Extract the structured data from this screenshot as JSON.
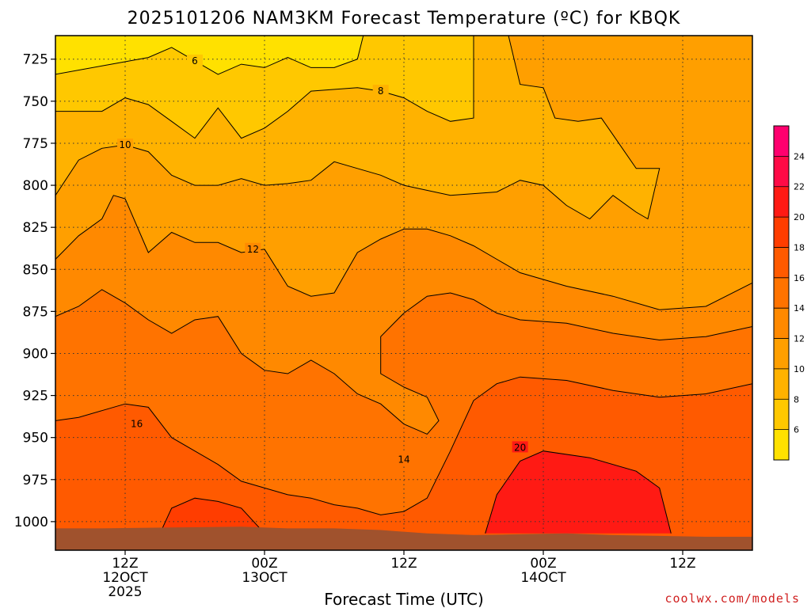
{
  "chart_data": {
    "type": "heatmap",
    "title": "2025101206 NAM3KM Forecast Temperature (ºC) for KBQK",
    "xlabel": "Forecast Time (UTC)",
    "ylabel": "",
    "watermark": "coolwx.com/models",
    "x_ticks": [
      {
        "label": [
          "12Z",
          "12OCT",
          "2025"
        ],
        "hour": 6
      },
      {
        "label": [
          "00Z",
          "13OCT"
        ],
        "hour": 18
      },
      {
        "label": [
          "12Z"
        ],
        "hour": 30
      },
      {
        "label": [
          "00Z",
          "14OCT"
        ],
        "hour": 42
      },
      {
        "label": [
          "12Z"
        ],
        "hour": 54
      }
    ],
    "x_range_hours": [
      0,
      60
    ],
    "y_ticks": [
      "725",
      "750",
      "775",
      "800",
      "825",
      "850",
      "875",
      "900",
      "925",
      "950",
      "975",
      "1000"
    ],
    "y_range_hpa": [
      711,
      1017
    ],
    "y_inverted": true,
    "grid": true,
    "colorbar": {
      "ticks": [
        "6",
        "8",
        "10",
        "12",
        "14",
        "16",
        "18",
        "20",
        "22",
        "24"
      ],
      "levels": [
        4,
        6,
        8,
        10,
        12,
        14,
        16,
        18,
        20,
        22,
        24,
        26
      ],
      "colors": [
        "#ffe100",
        "#ffc800",
        "#ffb200",
        "#ff9f00",
        "#ff8900",
        "#ff7300",
        "#ff5a00",
        "#ff3d00",
        "#ff1a14",
        "#ff0a46",
        "#ff006e"
      ]
    },
    "surface_color": "#a0522d",
    "surface_pressure_hpa": [
      [
        0,
        1004
      ],
      [
        4,
        1004
      ],
      [
        10,
        1003.5
      ],
      [
        16,
        1003
      ],
      [
        20,
        1004
      ],
      [
        24,
        1004
      ],
      [
        28,
        1005
      ],
      [
        32,
        1007
      ],
      [
        36,
        1008
      ],
      [
        40,
        1007.5
      ],
      [
        44,
        1007
      ],
      [
        48,
        1008
      ],
      [
        52,
        1008.5
      ],
      [
        56,
        1009
      ],
      [
        60,
        1009
      ]
    ],
    "contours": [
      {
        "level": 6,
        "label": "6",
        "label_pos": [
          12,
          726
        ],
        "points": [
          [
            0,
            734
          ],
          [
            4,
            729
          ],
          [
            8,
            724
          ],
          [
            10,
            718
          ],
          [
            12,
            726
          ],
          [
            14,
            734
          ],
          [
            16,
            728
          ],
          [
            18,
            730
          ],
          [
            20,
            724
          ],
          [
            22,
            730
          ],
          [
            24,
            730
          ],
          [
            26,
            725
          ],
          [
            26.5,
            711
          ]
        ]
      },
      {
        "level": 8,
        "label": "8",
        "label_pos": [
          28,
          744
        ],
        "points": [
          [
            0,
            756
          ],
          [
            4,
            756
          ],
          [
            6,
            748
          ],
          [
            8,
            752
          ],
          [
            10,
            762
          ],
          [
            12,
            772
          ],
          [
            14,
            754
          ],
          [
            16,
            772
          ],
          [
            18,
            766
          ],
          [
            20,
            756
          ],
          [
            22,
            744
          ],
          [
            26,
            742
          ],
          [
            28,
            744
          ],
          [
            30,
            748
          ],
          [
            32,
            756
          ],
          [
            34,
            762
          ],
          [
            36,
            760
          ],
          [
            36,
            711
          ]
        ]
      },
      {
        "level": 10,
        "label": "10",
        "label_pos": [
          6,
          776
        ],
        "points": [
          [
            0,
            806
          ],
          [
            2,
            785
          ],
          [
            4,
            778
          ],
          [
            6,
            776
          ],
          [
            8,
            780
          ],
          [
            10,
            794
          ],
          [
            12,
            800
          ],
          [
            14,
            800
          ],
          [
            16,
            796
          ],
          [
            18,
            800
          ],
          [
            20,
            799
          ],
          [
            22,
            797
          ],
          [
            24,
            786
          ],
          [
            26,
            790
          ],
          [
            28,
            794
          ],
          [
            30,
            800
          ],
          [
            34,
            806
          ],
          [
            38,
            804
          ],
          [
            40,
            797
          ],
          [
            42,
            800
          ],
          [
            44,
            812
          ],
          [
            46,
            820
          ],
          [
            48,
            806
          ],
          [
            50,
            816
          ],
          [
            51,
            820
          ],
          [
            52,
            790
          ],
          [
            50,
            790
          ],
          [
            48,
            770
          ],
          [
            47,
            760
          ],
          [
            45,
            762
          ],
          [
            43,
            760
          ],
          [
            42,
            742
          ],
          [
            40,
            740
          ],
          [
            39,
            711
          ]
        ]
      },
      {
        "level": 12,
        "label": "12",
        "label_pos": [
          17,
          838
        ],
        "points": [
          [
            0,
            844
          ],
          [
            2,
            830
          ],
          [
            4,
            820
          ],
          [
            5,
            806
          ],
          [
            6,
            808
          ],
          [
            8,
            840
          ],
          [
            10,
            828
          ],
          [
            12,
            834
          ],
          [
            14,
            834
          ],
          [
            16,
            840
          ],
          [
            18,
            838
          ],
          [
            20,
            860
          ],
          [
            22,
            866
          ],
          [
            24,
            864
          ],
          [
            26,
            840
          ],
          [
            28,
            832
          ],
          [
            30,
            826
          ],
          [
            32,
            826
          ],
          [
            34,
            830
          ],
          [
            36,
            836
          ],
          [
            38,
            844
          ],
          [
            40,
            852
          ],
          [
            44,
            860
          ],
          [
            48,
            866
          ],
          [
            52,
            874
          ],
          [
            56,
            872
          ],
          [
            60,
            858
          ]
        ]
      },
      {
        "level": 14,
        "label": "14",
        "label_pos": [
          30,
          963
        ],
        "points": [
          [
            0,
            878
          ],
          [
            2,
            872
          ],
          [
            4,
            862
          ],
          [
            6,
            870
          ],
          [
            8,
            880
          ],
          [
            10,
            888
          ],
          [
            12,
            880
          ],
          [
            14,
            878
          ],
          [
            16,
            900
          ],
          [
            18,
            910
          ],
          [
            20,
            912
          ],
          [
            22,
            904
          ],
          [
            24,
            912
          ],
          [
            26,
            924
          ],
          [
            28,
            930
          ],
          [
            30,
            942
          ],
          [
            32,
            948
          ],
          [
            33,
            940
          ],
          [
            32,
            926
          ],
          [
            30,
            920
          ],
          [
            28,
            912
          ],
          [
            28,
            890
          ],
          [
            30,
            876
          ],
          [
            32,
            866
          ],
          [
            34,
            864
          ],
          [
            36,
            868
          ],
          [
            38,
            876
          ],
          [
            40,
            880
          ],
          [
            44,
            882
          ],
          [
            48,
            888
          ],
          [
            52,
            892
          ],
          [
            56,
            890
          ],
          [
            60,
            884
          ]
        ]
      },
      {
        "level": 16,
        "label": "16",
        "label_pos": [
          7,
          942
        ],
        "points": [
          [
            0,
            940
          ],
          [
            2,
            938
          ],
          [
            4,
            934
          ],
          [
            6,
            930
          ],
          [
            8,
            932
          ],
          [
            10,
            950
          ],
          [
            12,
            958
          ],
          [
            14,
            966
          ],
          [
            16,
            976
          ],
          [
            18,
            980
          ],
          [
            20,
            984
          ],
          [
            22,
            986
          ],
          [
            24,
            990
          ],
          [
            26,
            992
          ],
          [
            28,
            996
          ],
          [
            30,
            994
          ],
          [
            32,
            986
          ],
          [
            34,
            958
          ],
          [
            36,
            928
          ],
          [
            38,
            918
          ],
          [
            40,
            914
          ],
          [
            44,
            916
          ],
          [
            48,
            922
          ],
          [
            52,
            926
          ],
          [
            56,
            924
          ],
          [
            60,
            918
          ]
        ]
      },
      {
        "level": 18,
        "label": "",
        "label_pos": [
          0,
          0
        ],
        "points": [
          [
            9,
            1007
          ],
          [
            10,
            992
          ],
          [
            12,
            986
          ],
          [
            14,
            988
          ],
          [
            16,
            992
          ],
          [
            18,
            1007
          ]
        ]
      },
      {
        "level": 20,
        "label": "20",
        "label_pos": [
          40,
          956
        ],
        "points": [
          [
            37,
            1007
          ],
          [
            38,
            984
          ],
          [
            40,
            964
          ],
          [
            42,
            958
          ],
          [
            46,
            962
          ],
          [
            50,
            970
          ],
          [
            52,
            980
          ],
          [
            53,
            1007
          ]
        ]
      }
    ]
  }
}
